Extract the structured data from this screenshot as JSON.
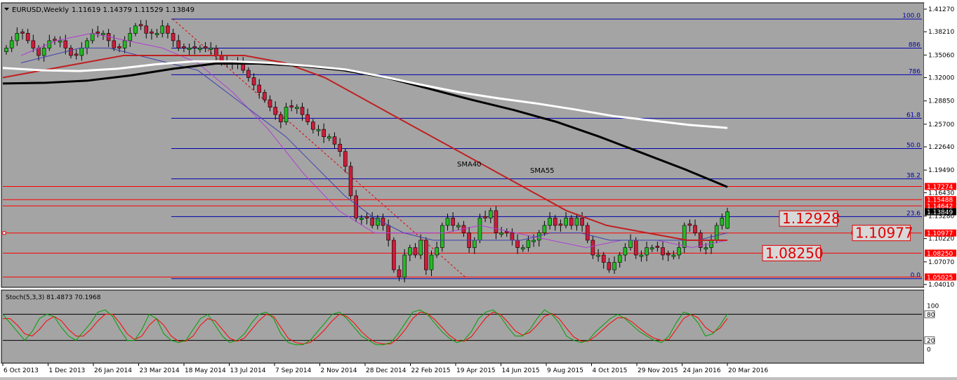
{
  "header": {
    "symbol": "EURUSD,Weekly",
    "ohlc": "1.11619 1.14379 1.11529 1.13849"
  },
  "stoch_header": "Stoch(5,3,3) 81.4873 70.1968",
  "price_ticks": [
    "1.41270",
    "1.38210",
    "1.35060",
    "1.32000",
    "1.28850",
    "1.25700",
    "1.22640",
    "1.19490",
    "1.16430",
    "1.13280",
    "1.10220",
    "1.07070",
    "1.04010"
  ],
  "price_tick_values": [
    1.4127,
    1.3821,
    1.3506,
    1.32,
    1.2885,
    1.257,
    1.2264,
    1.1949,
    1.1643,
    1.1328,
    1.1022,
    1.0707,
    1.0401
  ],
  "stoch_ticks": [
    "100",
    "80",
    "20",
    "0"
  ],
  "stoch_tick_values": [
    100,
    80,
    20,
    0
  ],
  "date_labels": [
    "6 Oct 2013",
    "1 Dec 2013",
    "26 Jan 2014",
    "23 Mar 2014",
    "18 May 2014",
    "13 Jul 2014",
    "7 Sep 2014",
    "2 Nov 2014",
    "28 Dec 2014",
    "22 Feb 2015",
    "19 Apr 2015",
    "14 Jun 2015",
    "9 Aug 2015",
    "4 Oct 2015",
    "29 Nov 2015",
    "24 Jan 2016",
    "20 Mar 2016"
  ],
  "fib_levels": [
    {
      "label": "100.0",
      "price": 1.3993
    },
    {
      "label": "886",
      "price": 1.36
    },
    {
      "label": "786",
      "price": 1.324
    },
    {
      "label": "61.8",
      "price": 1.265
    },
    {
      "label": "50.0",
      "price": 1.224
    },
    {
      "label": "38.2",
      "price": 1.183
    },
    {
      "label": "23.6",
      "price": 1.132
    },
    {
      "label": "0.0",
      "price": 1.048
    }
  ],
  "price_markers": [
    {
      "label": "1.17274",
      "price": 1.17274,
      "color": "#ff0000"
    },
    {
      "label": "1.15488",
      "price": 1.15488,
      "color": "#ff0000"
    },
    {
      "label": "1.14642",
      "price": 1.14642,
      "color": "#ff0000"
    },
    {
      "label": "1.13849",
      "price": 1.13849,
      "color": "#000000"
    },
    {
      "label": "1.10977",
      "price": 1.10977,
      "color": "#ff0000"
    },
    {
      "label": "1.08250",
      "price": 1.0825,
      "color": "#ff0000"
    },
    {
      "label": "1.05025",
      "price": 1.05025,
      "color": "#ff0000"
    }
  ],
  "annotations": {
    "sma40": "SMA40",
    "sma55": "SMA55"
  },
  "level_boxes": [
    {
      "label": "1.12928",
      "price": 1.12928
    },
    {
      "label": "1.10977",
      "price": 1.10977
    },
    {
      "label": "1.08250",
      "price": 1.0825
    }
  ],
  "colors": {
    "background": "#a4a4a4",
    "bull": "#22bb22",
    "bear": "#cc1d3a",
    "fib": "#0000b0",
    "resistance": "#ff0000",
    "sma_white": "#ffffff",
    "sma_black": "#000000",
    "sma40": "#4040b0",
    "sma55": "#c02020",
    "stoch_main": "#00a000",
    "stoch_signal": "#ff0000"
  },
  "chart_data": [
    {
      "type": "candlestick",
      "title": "EURUSD,Weekly",
      "ylim": [
        1.0401,
        1.4127
      ],
      "x_range": [
        "6 Oct 2013",
        "20 Mar 2016"
      ],
      "last_candle": {
        "open": 1.11619,
        "high": 1.14379,
        "low": 1.11529,
        "close": 1.13849
      },
      "closes": [
        1.36,
        1.37,
        1.38,
        1.38,
        1.37,
        1.36,
        1.35,
        1.36,
        1.37,
        1.37,
        1.37,
        1.36,
        1.35,
        1.35,
        1.36,
        1.37,
        1.38,
        1.38,
        1.38,
        1.37,
        1.36,
        1.36,
        1.37,
        1.38,
        1.39,
        1.39,
        1.38,
        1.38,
        1.38,
        1.39,
        1.38,
        1.37,
        1.36,
        1.36,
        1.36,
        1.36,
        1.36,
        1.36,
        1.36,
        1.35,
        1.34,
        1.34,
        1.34,
        1.34,
        1.33,
        1.32,
        1.31,
        1.3,
        1.29,
        1.28,
        1.27,
        1.26,
        1.28,
        1.28,
        1.28,
        1.27,
        1.26,
        1.25,
        1.25,
        1.24,
        1.24,
        1.23,
        1.22,
        1.2,
        1.16,
        1.13,
        1.13,
        1.13,
        1.12,
        1.13,
        1.12,
        1.1,
        1.06,
        1.05,
        1.08,
        1.09,
        1.08,
        1.1,
        1.06,
        1.08,
        1.09,
        1.12,
        1.13,
        1.12,
        1.12,
        1.11,
        1.09,
        1.1,
        1.13,
        1.13,
        1.14,
        1.11,
        1.11,
        1.11,
        1.1,
        1.09,
        1.09,
        1.1,
        1.1,
        1.11,
        1.12,
        1.13,
        1.12,
        1.12,
        1.13,
        1.12,
        1.13,
        1.12,
        1.1,
        1.08,
        1.08,
        1.07,
        1.06,
        1.07,
        1.08,
        1.09,
        1.1,
        1.08,
        1.08,
        1.09,
        1.09,
        1.09,
        1.08,
        1.08,
        1.08,
        1.09,
        1.12,
        1.12,
        1.11,
        1.09,
        1.09,
        1.1,
        1.12,
        1.13,
        1.14
      ],
      "series": [
        {
          "name": "SMA40",
          "values": [
            1.34,
            1.35,
            1.36,
            1.36,
            1.35,
            1.34,
            1.33,
            1.3,
            1.27,
            1.24,
            1.2,
            1.16,
            1.13,
            1.11,
            1.1,
            1.1,
            1.1,
            1.1,
            1.11,
            1.11,
            1.1,
            1.1,
            1.1,
            1.1,
            1.11
          ]
        },
        {
          "name": "SMA55",
          "values": [
            1.32,
            1.33,
            1.34,
            1.35,
            1.35,
            1.35,
            1.35,
            1.34,
            1.32,
            1.29,
            1.26,
            1.23,
            1.2,
            1.17,
            1.14,
            1.12,
            1.11,
            1.1,
            1.1
          ]
        }
      ]
    },
    {
      "type": "line",
      "title": "Stoch(5,3,3)",
      "ylim": [
        0,
        100
      ],
      "series": [
        {
          "name": "main",
          "values": [
            80,
            60,
            40,
            20,
            40,
            70,
            80,
            75,
            50,
            30,
            20,
            40,
            60,
            85,
            90,
            75,
            45,
            20,
            20,
            45,
            80,
            70,
            35,
            20,
            15,
            20,
            45,
            70,
            80,
            55,
            30,
            15,
            20,
            35,
            60,
            80,
            85,
            70,
            35,
            15,
            10,
            10,
            20,
            40,
            60,
            80,
            85,
            70,
            50,
            30,
            20,
            10,
            10,
            15,
            35,
            60,
            85,
            90,
            80,
            60,
            40,
            25,
            15,
            20,
            40,
            70,
            85,
            90,
            75,
            50,
            30,
            30,
            45,
            70,
            90,
            80,
            60,
            30,
            20,
            15,
            20,
            40,
            55,
            70,
            80,
            70,
            55,
            40,
            30,
            20,
            15,
            30,
            60,
            85,
            80,
            60,
            30,
            35,
            55,
            81
          ]
        },
        {
          "name": "signal",
          "values": [
            70,
            70,
            55,
            35,
            30,
            45,
            65,
            75,
            65,
            45,
            30,
            30,
            45,
            65,
            80,
            80,
            60,
            35,
            22,
            30,
            55,
            70,
            55,
            30,
            18,
            18,
            30,
            55,
            70,
            65,
            45,
            25,
            18,
            25,
            45,
            65,
            80,
            75,
            50,
            25,
            15,
            12,
            15,
            28,
            45,
            65,
            80,
            75,
            60,
            40,
            25,
            15,
            12,
            12,
            25,
            45,
            70,
            85,
            82,
            68,
            50,
            32,
            20,
            18,
            28,
            50,
            72,
            85,
            80,
            62,
            42,
            32,
            38,
            55,
            75,
            82,
            70,
            48,
            28,
            18,
            18,
            30,
            45,
            60,
            72,
            72,
            62,
            48,
            35,
            25,
            20,
            22,
            45,
            70,
            80,
            72,
            50,
            38,
            48,
            70
          ]
        }
      ]
    }
  ]
}
